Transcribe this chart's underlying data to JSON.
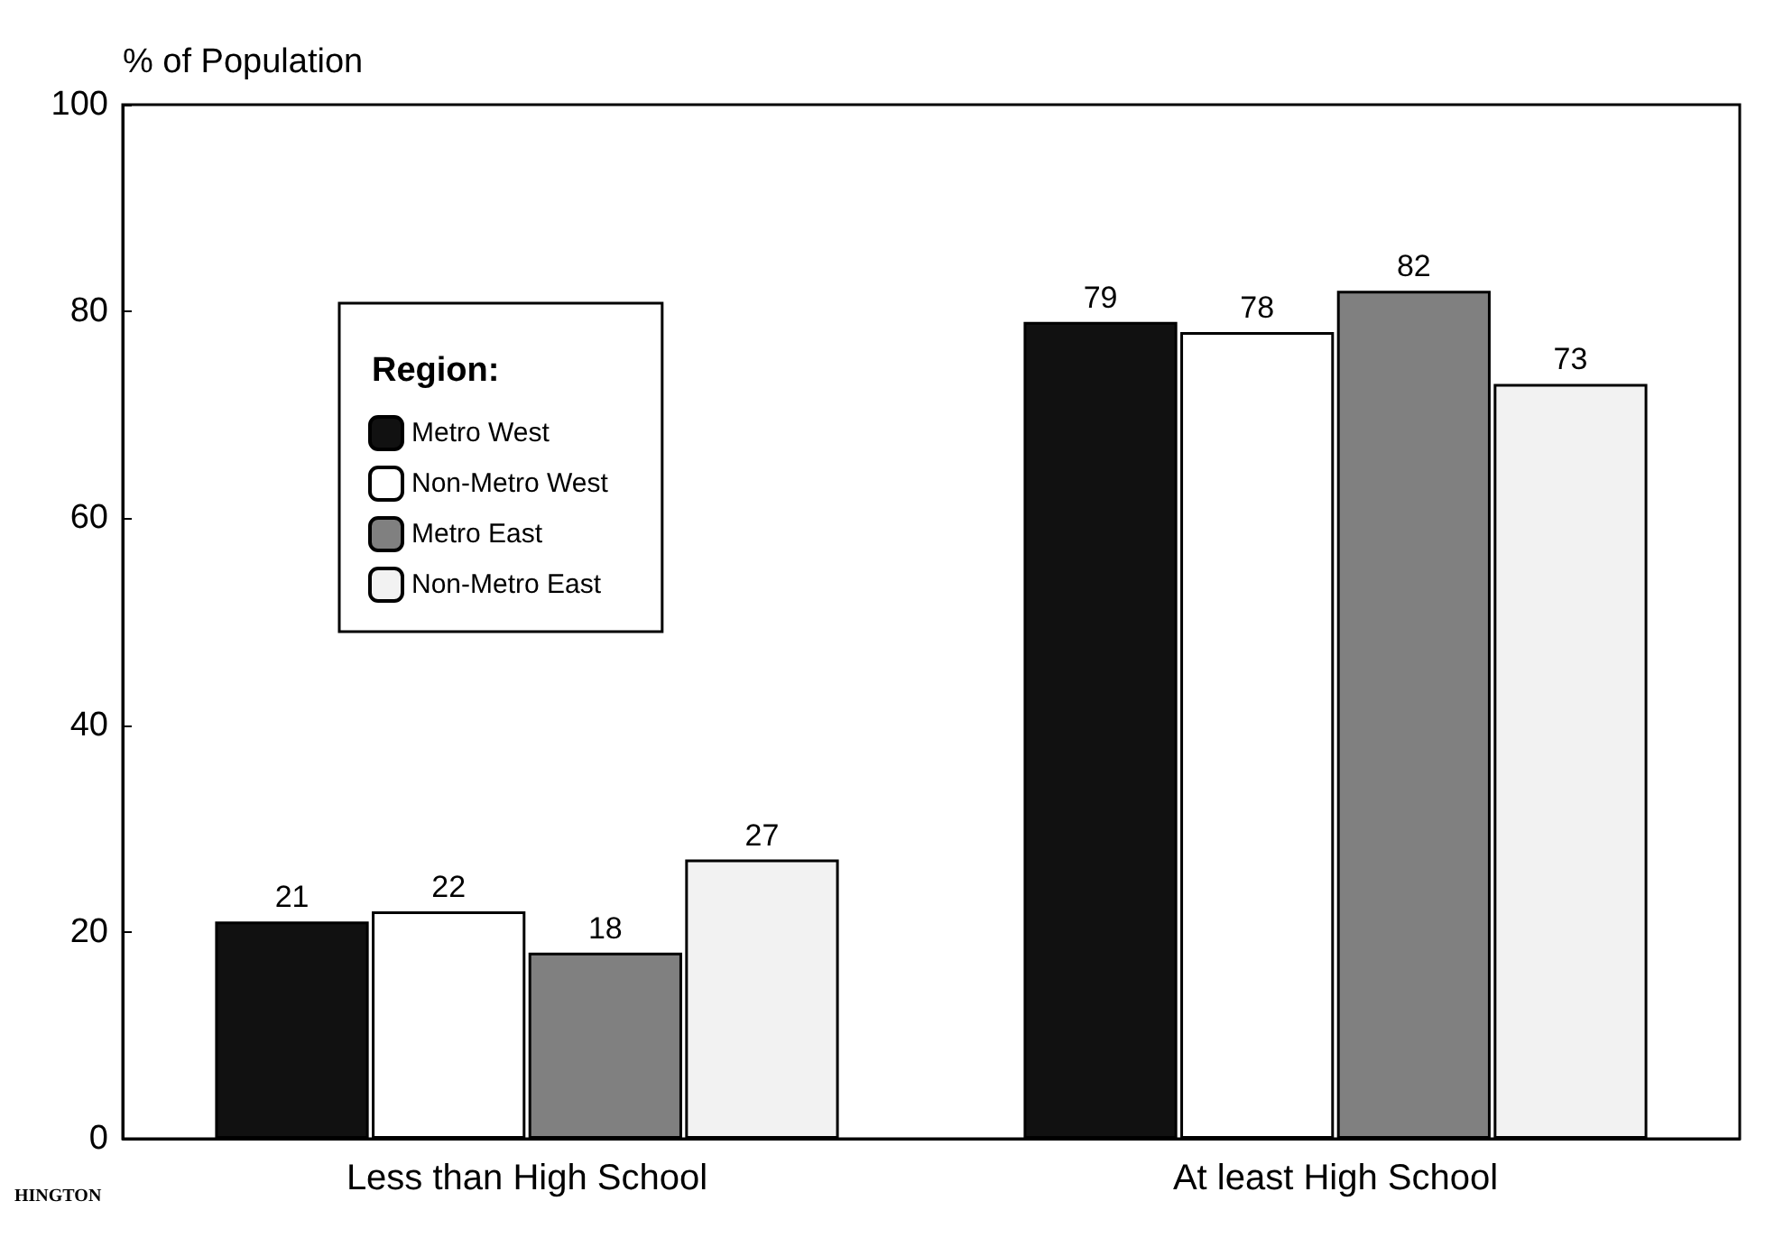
{
  "chart_data": {
    "type": "bar",
    "ylabel": "% of Population",
    "legend_title": "Region:",
    "categories": [
      "Less than High School",
      "At least High School"
    ],
    "series": [
      {
        "name": "Metro West",
        "color": "#111111",
        "values": [
          21,
          79
        ]
      },
      {
        "name": "Non-Metro West",
        "color": "#ffffff",
        "values": [
          22,
          78
        ]
      },
      {
        "name": "Metro East",
        "color": "#808080",
        "values": [
          18,
          82
        ]
      },
      {
        "name": "Non-Metro East",
        "color": "#f2f2f2",
        "values": [
          27,
          73
        ]
      }
    ],
    "ylim": [
      0,
      100
    ],
    "yticks": [
      0,
      20,
      40,
      60,
      80,
      100
    ],
    "grid": false,
    "legend": "top left",
    "data_labels": true,
    "annotations": [
      "HINGTON"
    ]
  }
}
